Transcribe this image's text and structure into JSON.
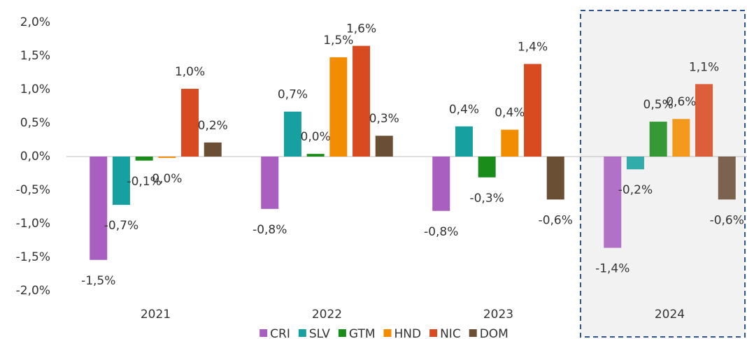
{
  "chart_data": {
    "type": "bar",
    "categories": [
      "2021",
      "2022",
      "2023",
      "2024"
    ],
    "series": [
      {
        "name": "CRI",
        "color": "#a95fc0",
        "values": [
          -1.54,
          -0.78,
          -0.81,
          -1.36
        ],
        "value_labels": [
          "-1,5%",
          "-0,8%",
          "-0,8%",
          "-1,4%"
        ]
      },
      {
        "name": "SLV",
        "color": "#17a0a0",
        "values": [
          -0.72,
          0.67,
          0.45,
          -0.19
        ],
        "value_labels": [
          "-0,7%",
          "0,7%",
          "0,4%",
          "-0,2%"
        ]
      },
      {
        "name": "GTM",
        "color": "#1a8c1a",
        "values": [
          -0.06,
          0.04,
          -0.31,
          0.52
        ],
        "value_labels": [
          "-0,1%",
          "0,0%",
          "-0,3%",
          "0,5%"
        ]
      },
      {
        "name": "HND",
        "color": "#f28c00",
        "values": [
          -0.02,
          1.48,
          0.4,
          0.56
        ],
        "value_labels": [
          "0,0%",
          "1,5%",
          "0,4%",
          "0,6%"
        ]
      },
      {
        "name": "NIC",
        "color": "#d84a20",
        "values": [
          1.01,
          1.65,
          1.38,
          1.08
        ],
        "value_labels": [
          "1,0%",
          "1,6%",
          "1,4%",
          "1,1%"
        ]
      },
      {
        "name": "DOM",
        "color": "#6b4f35",
        "values": [
          0.21,
          0.31,
          -0.64,
          -0.64
        ],
        "value_labels": [
          "0,2%",
          "0,3%",
          "-0,6%",
          "-0,6%"
        ]
      }
    ],
    "ylim": [
      -2.0,
      2.0
    ],
    "yticks": [
      {
        "value": -2.0,
        "label": "-2,0%"
      },
      {
        "value": -1.5,
        "label": "-1,5%"
      },
      {
        "value": -1.0,
        "label": "-1,0%"
      },
      {
        "value": -0.5,
        "label": "-0,5%"
      },
      {
        "value": 0.0,
        "label": "0,0%"
      },
      {
        "value": 0.5,
        "label": "0,5%"
      },
      {
        "value": 1.0,
        "label": "1,0%"
      },
      {
        "value": 1.5,
        "label": "1,5%"
      },
      {
        "value": 2.0,
        "label": "2,0%"
      }
    ],
    "legend": "bottom"
  }
}
